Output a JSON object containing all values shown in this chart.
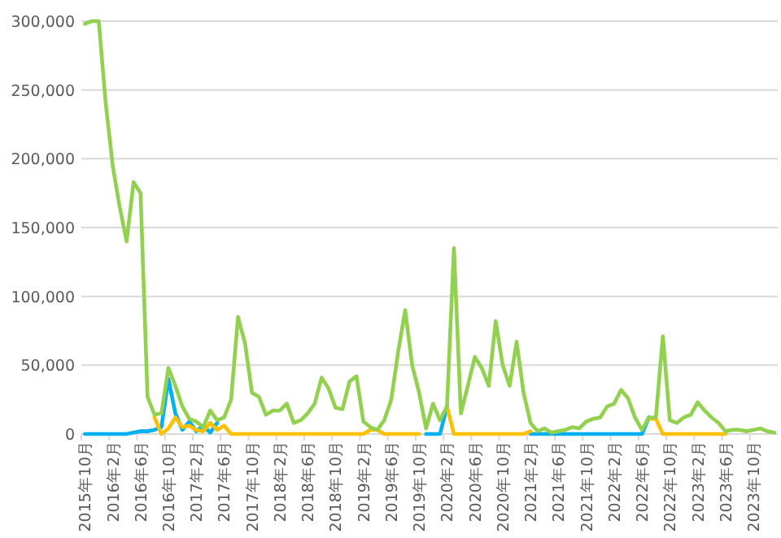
{
  "chart_data": {
    "type": "line",
    "categories": [
      "2015年10月",
      null,
      null,
      null,
      "2016年2月",
      null,
      null,
      null,
      "2016年6月",
      null,
      null,
      null,
      "2016年10月",
      null,
      null,
      null,
      "2017年2月",
      null,
      null,
      null,
      "2017年6月",
      null,
      null,
      null,
      "2017年10月",
      null,
      null,
      null,
      "2018年2月",
      null,
      null,
      null,
      "2018年6月",
      null,
      null,
      null,
      "2018年10月",
      null,
      null,
      null,
      "2019年2月",
      null,
      null,
      null,
      "2019年6月",
      null,
      null,
      null,
      "2019年10月",
      null,
      null,
      null,
      "2020年2月",
      null,
      null,
      null,
      "2020年6月",
      null,
      null,
      null,
      "2020年10月",
      null,
      null,
      null,
      "2021年2月",
      null,
      null,
      null,
      "2021年6月",
      null,
      null,
      null,
      "2021年10月",
      null,
      null,
      null,
      "2022年2月",
      null,
      null,
      null,
      "2022年6月",
      null,
      null,
      null,
      "2022年10月",
      null,
      null,
      null,
      "2023年2月",
      null,
      null,
      null,
      "2023年6月",
      null,
      null,
      null,
      "2023年10月",
      null,
      null,
      null
    ],
    "series": [
      {
        "color": "#00b0f0",
        "values": [
          0,
          0,
          0,
          0,
          0,
          0,
          0,
          1000,
          2000,
          2000,
          3000,
          5000,
          40000,
          15000,
          3000,
          9000,
          2000,
          6000,
          1000,
          8000,
          null,
          null,
          null,
          null,
          null,
          null,
          null,
          null,
          null,
          null,
          null,
          null,
          null,
          null,
          null,
          null,
          null,
          null,
          null,
          null,
          null,
          null,
          null,
          null,
          null,
          null,
          null,
          null,
          null,
          0,
          0,
          0,
          20000,
          null,
          null,
          null,
          null,
          null,
          null,
          null,
          null,
          null,
          null,
          null,
          0,
          0,
          0,
          0,
          0,
          0,
          0,
          0,
          0,
          0,
          0,
          0,
          0,
          0,
          0,
          0,
          0,
          12000,
          null,
          null,
          null,
          null,
          null,
          null,
          null,
          null,
          null,
          null,
          null,
          null,
          null,
          null,
          null,
          null,
          null,
          null
        ]
      },
      {
        "color": "#ffc000",
        "values": [
          null,
          null,
          null,
          null,
          null,
          null,
          null,
          null,
          null,
          null,
          12000,
          0,
          4000,
          12000,
          5000,
          6000,
          3000,
          2000,
          8000,
          3000,
          6000,
          0,
          0,
          0,
          0,
          0,
          0,
          0,
          0,
          0,
          0,
          0,
          0,
          0,
          0,
          0,
          0,
          0,
          0,
          0,
          0,
          3000,
          3000,
          0,
          0,
          0,
          0,
          0,
          0,
          null,
          null,
          null,
          20000,
          0,
          0,
          0,
          0,
          0,
          0,
          0,
          0,
          0,
          0,
          0,
          2000,
          null,
          null,
          null,
          null,
          null,
          null,
          null,
          null,
          null,
          null,
          null,
          null,
          null,
          null,
          null,
          null,
          11000,
          11000,
          0,
          0,
          0,
          0,
          0,
          0,
          0,
          0,
          0,
          0,
          null,
          null,
          null,
          null,
          null,
          null,
          null
        ]
      },
      {
        "color": "#92d050",
        "values": [
          298000,
          300000,
          300000,
          240000,
          195000,
          165000,
          140000,
          183000,
          175000,
          27000,
          14000,
          15000,
          48000,
          35000,
          20000,
          11000,
          9000,
          5000,
          17000,
          10000,
          12000,
          25000,
          85000,
          66000,
          30000,
          27000,
          14000,
          17000,
          17000,
          22000,
          8000,
          10000,
          15000,
          22000,
          41000,
          33000,
          19000,
          18000,
          38000,
          42000,
          9000,
          5000,
          3000,
          10000,
          25000,
          60000,
          90000,
          50000,
          30000,
          4000,
          22000,
          10000,
          20000,
          135000,
          15000,
          35000,
          56000,
          48000,
          35000,
          82000,
          50000,
          35000,
          67000,
          30000,
          8000,
          2000,
          4000,
          1000,
          2000,
          3000,
          5000,
          4000,
          9000,
          11000,
          12000,
          20000,
          22000,
          32000,
          26000,
          12000,
          3000,
          12000,
          12000,
          71000,
          10000,
          8000,
          12000,
          14000,
          23000,
          17000,
          12000,
          8000,
          2000,
          3000,
          3000,
          2000,
          3000,
          4000,
          2000,
          1000
        ]
      }
    ],
    "ylim": [
      0,
      300000
    ],
    "yticks": [
      {
        "value": 0,
        "label": "0"
      },
      {
        "value": 50000,
        "label": "50,000"
      },
      {
        "value": 100000,
        "label": "100,000"
      },
      {
        "value": 150000,
        "label": "150,000"
      },
      {
        "value": 200000,
        "label": "200,000"
      },
      {
        "value": 250000,
        "label": "250,000"
      },
      {
        "value": 300000,
        "label": "300,000"
      }
    ],
    "grid": "y",
    "marker": "none",
    "line_style": "solid"
  }
}
